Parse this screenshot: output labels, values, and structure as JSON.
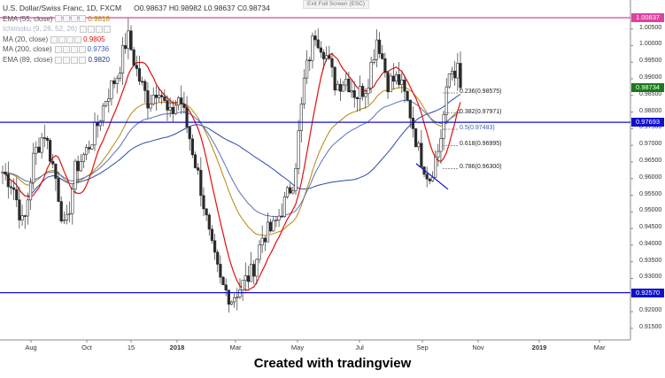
{
  "header": {
    "symbol": "U.S. Dollar/Swiss Franc, 1D, FXCM",
    "open": "O0.98637",
    "high": "H0.98982",
    "low": "L0.98637",
    "close": "C0.98734",
    "exit_label": "Exit Full Screen (ESC)"
  },
  "indicators": [
    {
      "label": "EMA (55, close)",
      "value": "0.9818",
      "color": "#b8860b"
    },
    {
      "label": "Ichimoku (9, 26, 52, 26)",
      "value": "",
      "color": "#9aa8c8"
    },
    {
      "label": "MA (20, close)",
      "value": "0.9805",
      "color": "#e01010"
    },
    {
      "label": "MA (200, close)",
      "value": "0.9736",
      "color": "#3a5fb0"
    },
    {
      "label": "EMA (89, close)",
      "value": "0.9820",
      "color": "#1a3a8a"
    }
  ],
  "footer": "Created with tradingview",
  "chart_data": {
    "type": "candlestick",
    "title": "U.S. Dollar/Swiss Franc, 1D, FXCM",
    "ylim": [
      0.9115,
      1.0105
    ],
    "y_ticks": [
      "1.00500",
      "1.00000",
      "0.99500",
      "0.99000",
      "0.98500",
      "0.98000",
      "0.97500",
      "0.97000",
      "0.96500",
      "0.96000",
      "0.95500",
      "0.95000",
      "0.94500",
      "0.94000",
      "0.93500",
      "0.93000",
      "0.92500",
      "0.92000",
      "0.91500"
    ],
    "x_ticks": [
      "Aug",
      "Oct",
      "15",
      "2018",
      "Mar",
      "May",
      "Jul",
      "Sep",
      "Nov",
      "2019",
      "Mar"
    ],
    "horizontal_levels": [
      {
        "value": 1.00837,
        "label": "1.00837",
        "color": "#e040a0"
      },
      {
        "value": 0.97693,
        "label": "0.97693",
        "color": "#1010d0"
      },
      {
        "value": 0.9257,
        "label": "0.92570",
        "color": "#1010d0"
      }
    ],
    "last_price": {
      "value": 0.98734,
      "label": "0.98734",
      "color": "#1a7a1a"
    },
    "fibonacci": [
      {
        "ratio": "0.236",
        "value": 0.98575
      },
      {
        "ratio": "0.382",
        "value": 0.97971
      },
      {
        "ratio": "0.5",
        "value": 0.97483
      },
      {
        "ratio": "0.618",
        "value": 0.96995
      },
      {
        "ratio": "0.786",
        "value": 0.963
      }
    ],
    "price_path": [
      [
        0.962,
        0.96
      ],
      [
        0.958,
        0.95
      ],
      [
        0.945,
        0.97
      ],
      [
        0.967,
        0.97
      ],
      [
        0.974,
        0.96
      ],
      [
        0.962,
        0.95
      ],
      [
        0.943,
        0.96
      ],
      [
        0.963,
        0.96
      ],
      [
        0.968,
        0.975
      ],
      [
        0.975,
        0.98
      ],
      [
        0.985,
        0.99
      ],
      [
        0.991,
        1.0
      ],
      [
        1.003,
        0.99
      ],
      [
        0.991,
        0.985
      ],
      [
        0.983,
        0.988
      ],
      [
        0.988,
        0.982
      ],
      [
        0.978,
        0.983
      ],
      [
        0.985,
        0.975
      ],
      [
        0.972,
        0.965
      ],
      [
        0.958,
        0.95
      ],
      [
        0.94,
        0.932
      ],
      [
        0.928,
        0.935
      ],
      [
        0.924,
        0.93
      ],
      [
        0.928,
        0.922
      ],
      [
        0.932,
        0.94
      ],
      [
        0.943,
        0.948
      ],
      [
        0.945,
        0.95
      ],
      [
        0.952,
        0.956
      ],
      [
        0.96,
        0.98
      ],
      [
        0.99,
        1.002
      ],
      [
        1.004,
        1.0
      ],
      [
        0.998,
        0.99
      ],
      [
        0.988,
        0.986
      ],
      [
        0.99,
        0.982
      ],
      [
        0.985,
        0.986
      ],
      [
        0.988,
        0.99
      ],
      [
        1.003,
        0.992
      ],
      [
        0.989,
        0.99
      ],
      [
        0.99,
        0.985
      ],
      [
        0.982,
        0.974
      ],
      [
        0.968,
        0.963
      ],
      [
        0.96,
        0.964
      ],
      [
        0.97,
        0.986
      ],
      [
        0.993,
        0.99
      ],
      [
        0.992,
        0.987
      ]
    ],
    "price_path_note": "",
    "trendline": {
      "from_x": "Sep",
      "to_x": "Sep"
    }
  }
}
